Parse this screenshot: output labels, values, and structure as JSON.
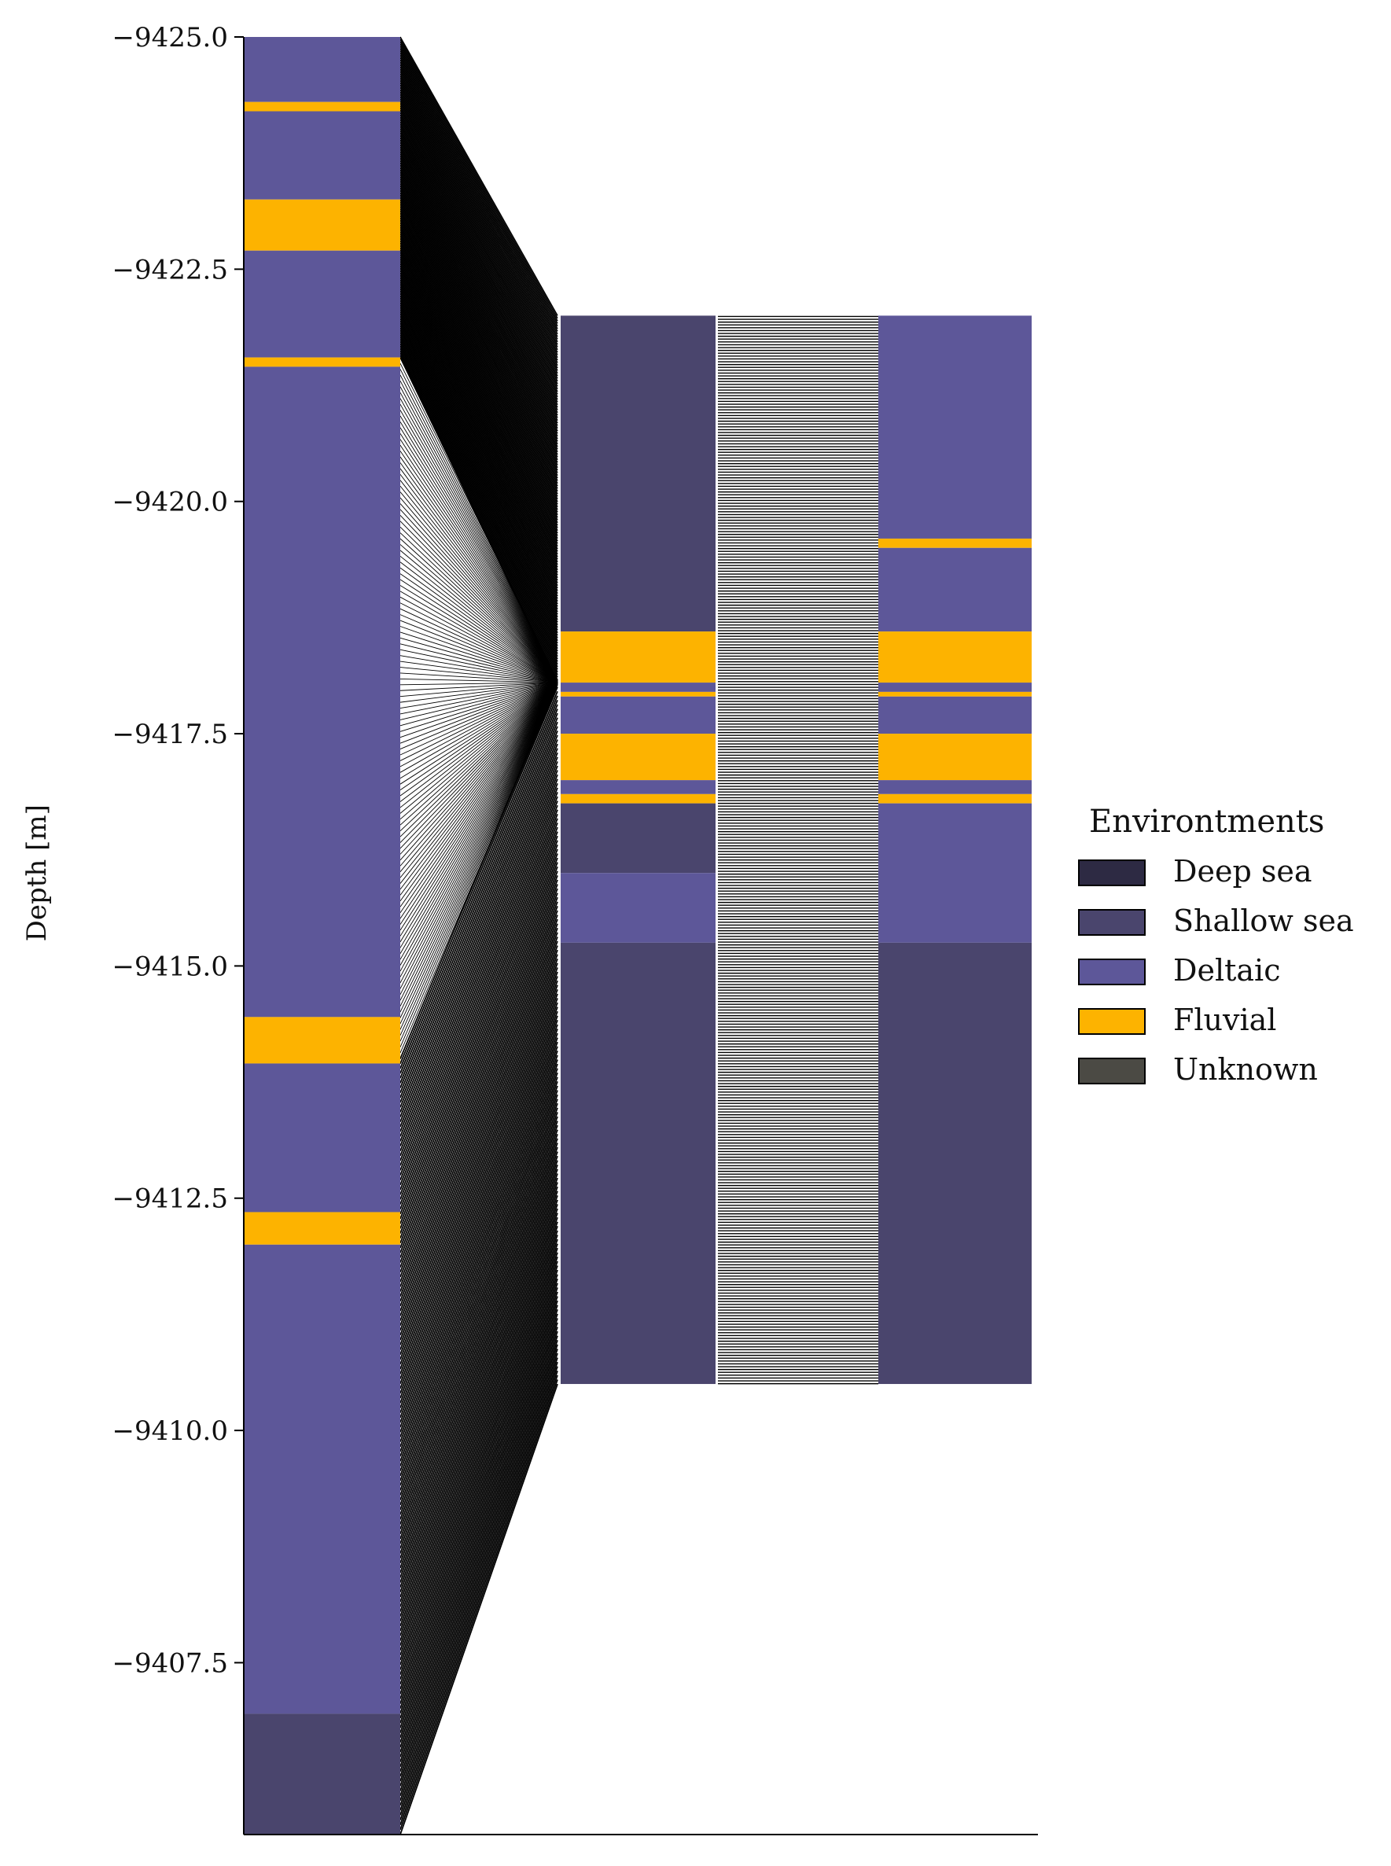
{
  "chart_data": {
    "type": "stratigraphic_column_correlation",
    "ylabel": "Depth [m]",
    "y_ticks": [
      -9425.0,
      -9422.5,
      -9420.0,
      -9417.5,
      -9415.0,
      -9412.5,
      -9410.0,
      -9407.5
    ],
    "y_tick_labels": [
      "−9425.0",
      "−9422.5",
      "−9420.0",
      "−9417.5",
      "−9415.0",
      "−9412.5",
      "−9410.0",
      "−9407.5"
    ],
    "ylim": [
      -9425.0,
      -9405.65
    ],
    "grid": false,
    "legend": {
      "title": "Environtments",
      "placement": "right",
      "entries": [
        {
          "name": "Deep sea",
          "color": "#2d2a43"
        },
        {
          "name": "Shallow sea",
          "color": "#4a456d"
        },
        {
          "name": "Deltaic",
          "color": "#5d5799"
        },
        {
          "name": "Fluvial",
          "color": "#fdb300"
        },
        {
          "name": "Unknown",
          "color": "#4b4a44"
        }
      ]
    },
    "left_column": {
      "top": -9425.0,
      "bottom": -9405.65,
      "layers": [
        {
          "top": -9425.0,
          "bottom": -9424.3,
          "env": "Deltaic"
        },
        {
          "top": -9424.3,
          "bottom": -9424.2,
          "env": "Fluvial"
        },
        {
          "top": -9424.2,
          "bottom": -9423.25,
          "env": "Deltaic"
        },
        {
          "top": -9423.25,
          "bottom": -9422.7,
          "env": "Fluvial"
        },
        {
          "top": -9422.7,
          "bottom": -9421.55,
          "env": "Deltaic"
        },
        {
          "top": -9421.55,
          "bottom": -9421.45,
          "env": "Fluvial"
        },
        {
          "top": -9421.45,
          "bottom": -9414.45,
          "env": "Deltaic"
        },
        {
          "top": -9414.45,
          "bottom": -9413.95,
          "env": "Fluvial"
        },
        {
          "top": -9413.95,
          "bottom": -9412.35,
          "env": "Deltaic"
        },
        {
          "top": -9412.35,
          "bottom": -9412.0,
          "env": "Fluvial"
        },
        {
          "top": -9412.0,
          "bottom": -9406.95,
          "env": "Deltaic"
        },
        {
          "top": -9406.95,
          "bottom": -9405.65,
          "env": "Shallow sea"
        }
      ]
    },
    "right_columns": {
      "top": -9422.0,
      "bottom": -9410.5,
      "middle": [
        {
          "top": -9422.0,
          "bottom": -9418.6,
          "env": "Shallow sea"
        },
        {
          "top": -9418.6,
          "bottom": -9418.05,
          "env": "Fluvial"
        },
        {
          "top": -9418.05,
          "bottom": -9417.95,
          "env": "Deltaic"
        },
        {
          "top": -9417.95,
          "bottom": -9417.9,
          "env": "Fluvial"
        },
        {
          "top": -9417.9,
          "bottom": -9417.5,
          "env": "Deltaic"
        },
        {
          "top": -9417.5,
          "bottom": -9417.0,
          "env": "Fluvial"
        },
        {
          "top": -9417.0,
          "bottom": -9416.85,
          "env": "Deltaic"
        },
        {
          "top": -9416.85,
          "bottom": -9416.75,
          "env": "Fluvial"
        },
        {
          "top": -9416.75,
          "bottom": -9416.0,
          "env": "Shallow sea"
        },
        {
          "top": -9416.0,
          "bottom": -9415.25,
          "env": "Deltaic"
        },
        {
          "top": -9415.25,
          "bottom": -9410.5,
          "env": "Shallow sea"
        }
      ],
      "right": [
        {
          "top": -9422.0,
          "bottom": -9419.6,
          "env": "Deltaic"
        },
        {
          "top": -9419.6,
          "bottom": -9419.5,
          "env": "Fluvial"
        },
        {
          "top": -9419.5,
          "bottom": -9418.6,
          "env": "Deltaic"
        },
        {
          "top": -9418.6,
          "bottom": -9418.05,
          "env": "Fluvial"
        },
        {
          "top": -9418.05,
          "bottom": -9417.95,
          "env": "Deltaic"
        },
        {
          "top": -9417.95,
          "bottom": -9417.9,
          "env": "Fluvial"
        },
        {
          "top": -9417.9,
          "bottom": -9417.5,
          "env": "Deltaic"
        },
        {
          "top": -9417.5,
          "bottom": -9417.0,
          "env": "Fluvial"
        },
        {
          "top": -9417.0,
          "bottom": -9416.85,
          "env": "Deltaic"
        },
        {
          "top": -9416.85,
          "bottom": -9416.75,
          "env": "Fluvial"
        },
        {
          "top": -9416.75,
          "bottom": -9415.25,
          "env": "Deltaic"
        },
        {
          "top": -9415.25,
          "bottom": -9410.5,
          "env": "Shallow sea"
        }
      ]
    },
    "correlation": {
      "focus_depth": -9418.05,
      "upper_span": [
        -9425.0,
        -9421.55
      ],
      "fan_span": [
        -9421.55,
        -9414.0
      ],
      "lower_span": [
        -9414.0,
        -9405.65
      ]
    }
  }
}
